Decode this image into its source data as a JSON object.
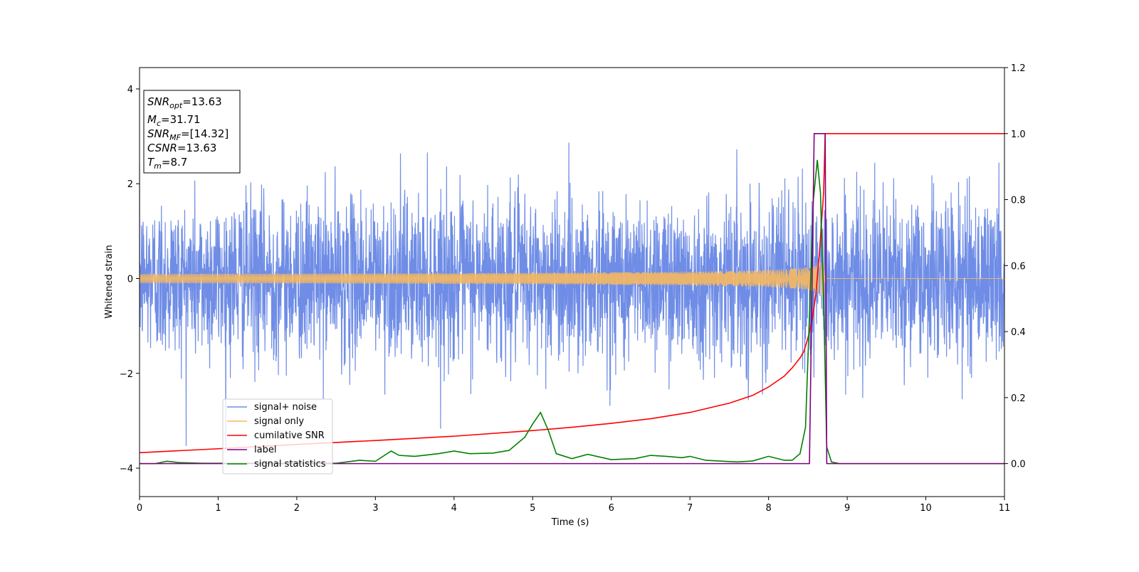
{
  "chart_data": {
    "type": "line",
    "xlabel": "Time (s)",
    "ylabel": "Whitened strain",
    "xlim": [
      0,
      11
    ],
    "ylim_left": [
      -4.6,
      4.45
    ],
    "ylim_right": [
      -0.1,
      1.2
    ],
    "x_ticks": [
      "0",
      "1",
      "2",
      "3",
      "4",
      "5",
      "6",
      "7",
      "8",
      "9",
      "10",
      "11"
    ],
    "y_ticks_left": [
      "−4",
      "−2",
      "0",
      "2",
      "4"
    ],
    "y_ticks_right": [
      "0.0",
      "0.2",
      "0.4",
      "0.6",
      "0.8",
      "1.0",
      "1.2"
    ],
    "grid": false,
    "legend_position": "lower-left",
    "annotation": {
      "snr_opt": {
        "sym": "SNR",
        "sub": "opt",
        "val": "=13.63"
      },
      "mc": {
        "sym": "M",
        "sub": "c",
        "val": "=31.71"
      },
      "snr_mf": {
        "sym": "SNR",
        "sub": "MF",
        "val": "=[14.32]"
      },
      "csnr": {
        "sym": "CSNR",
        "val": "=13.63"
      },
      "tm": {
        "sym": "T",
        "sub": "m",
        "val": "=8.7"
      }
    },
    "series": [
      {
        "name": "signal+ noise",
        "axis": "left",
        "color": "#6f8de6",
        "kind": "gaussian noise, std ≈ 0.85, with injected chirp",
        "noise_std": 0.85,
        "x_range": [
          0,
          11
        ]
      },
      {
        "name": "signal only",
        "axis": "left",
        "color": "#f5b860",
        "kind": "chirp",
        "merger_time": 8.72,
        "peak_amplitude": 1.0,
        "x_range": [
          0,
          11
        ]
      },
      {
        "name": "cumilative SNR",
        "axis": "right",
        "color": "#ff0000",
        "x": [
          0,
          1,
          2,
          3,
          4,
          5,
          5.5,
          6,
          6.5,
          7,
          7.5,
          7.8,
          8.0,
          8.2,
          8.3,
          8.4,
          8.45,
          8.5,
          8.55,
          8.6,
          8.65,
          8.7,
          8.72,
          11
        ],
        "y": [
          0.033,
          0.045,
          0.058,
          0.07,
          0.083,
          0.1,
          0.11,
          0.122,
          0.136,
          0.155,
          0.183,
          0.207,
          0.232,
          0.265,
          0.29,
          0.32,
          0.34,
          0.38,
          0.43,
          0.51,
          0.65,
          0.82,
          1.0,
          1.0
        ]
      },
      {
        "name": "label",
        "axis": "right",
        "color": "#800080",
        "x": [
          0,
          8.52,
          8.58,
          8.72,
          8.74,
          11
        ],
        "y": [
          0,
          0,
          1,
          1,
          0,
          0
        ]
      },
      {
        "name": "signal statistics",
        "axis": "right",
        "color": "#008000",
        "x": [
          0,
          0.2,
          0.35,
          0.5,
          0.8,
          1.2,
          1.6,
          2.0,
          2.5,
          2.8,
          3.0,
          3.2,
          3.3,
          3.5,
          3.8,
          4.0,
          4.2,
          4.5,
          4.7,
          4.9,
          5.0,
          5.1,
          5.2,
          5.3,
          5.5,
          5.7,
          6.0,
          6.3,
          6.5,
          6.7,
          6.9,
          7.0,
          7.2,
          7.6,
          7.8,
          8.0,
          8.2,
          8.3,
          8.4,
          8.47,
          8.52,
          8.57,
          8.62,
          8.66,
          8.7,
          8.74,
          8.8,
          8.9,
          11
        ],
        "y": [
          0,
          0,
          0.007,
          0.003,
          0.001,
          0.001,
          0.001,
          0.001,
          0.001,
          0.01,
          0.007,
          0.038,
          0.025,
          0.022,
          0.03,
          0.038,
          0.03,
          0.032,
          0.04,
          0.08,
          0.12,
          0.155,
          0.1,
          0.03,
          0.015,
          0.028,
          0.012,
          0.015,
          0.025,
          0.022,
          0.018,
          0.022,
          0.01,
          0.005,
          0.008,
          0.022,
          0.01,
          0.01,
          0.03,
          0.11,
          0.45,
          0.8,
          0.92,
          0.82,
          0.5,
          0.05,
          0.005,
          0,
          0
        ]
      }
    ]
  }
}
